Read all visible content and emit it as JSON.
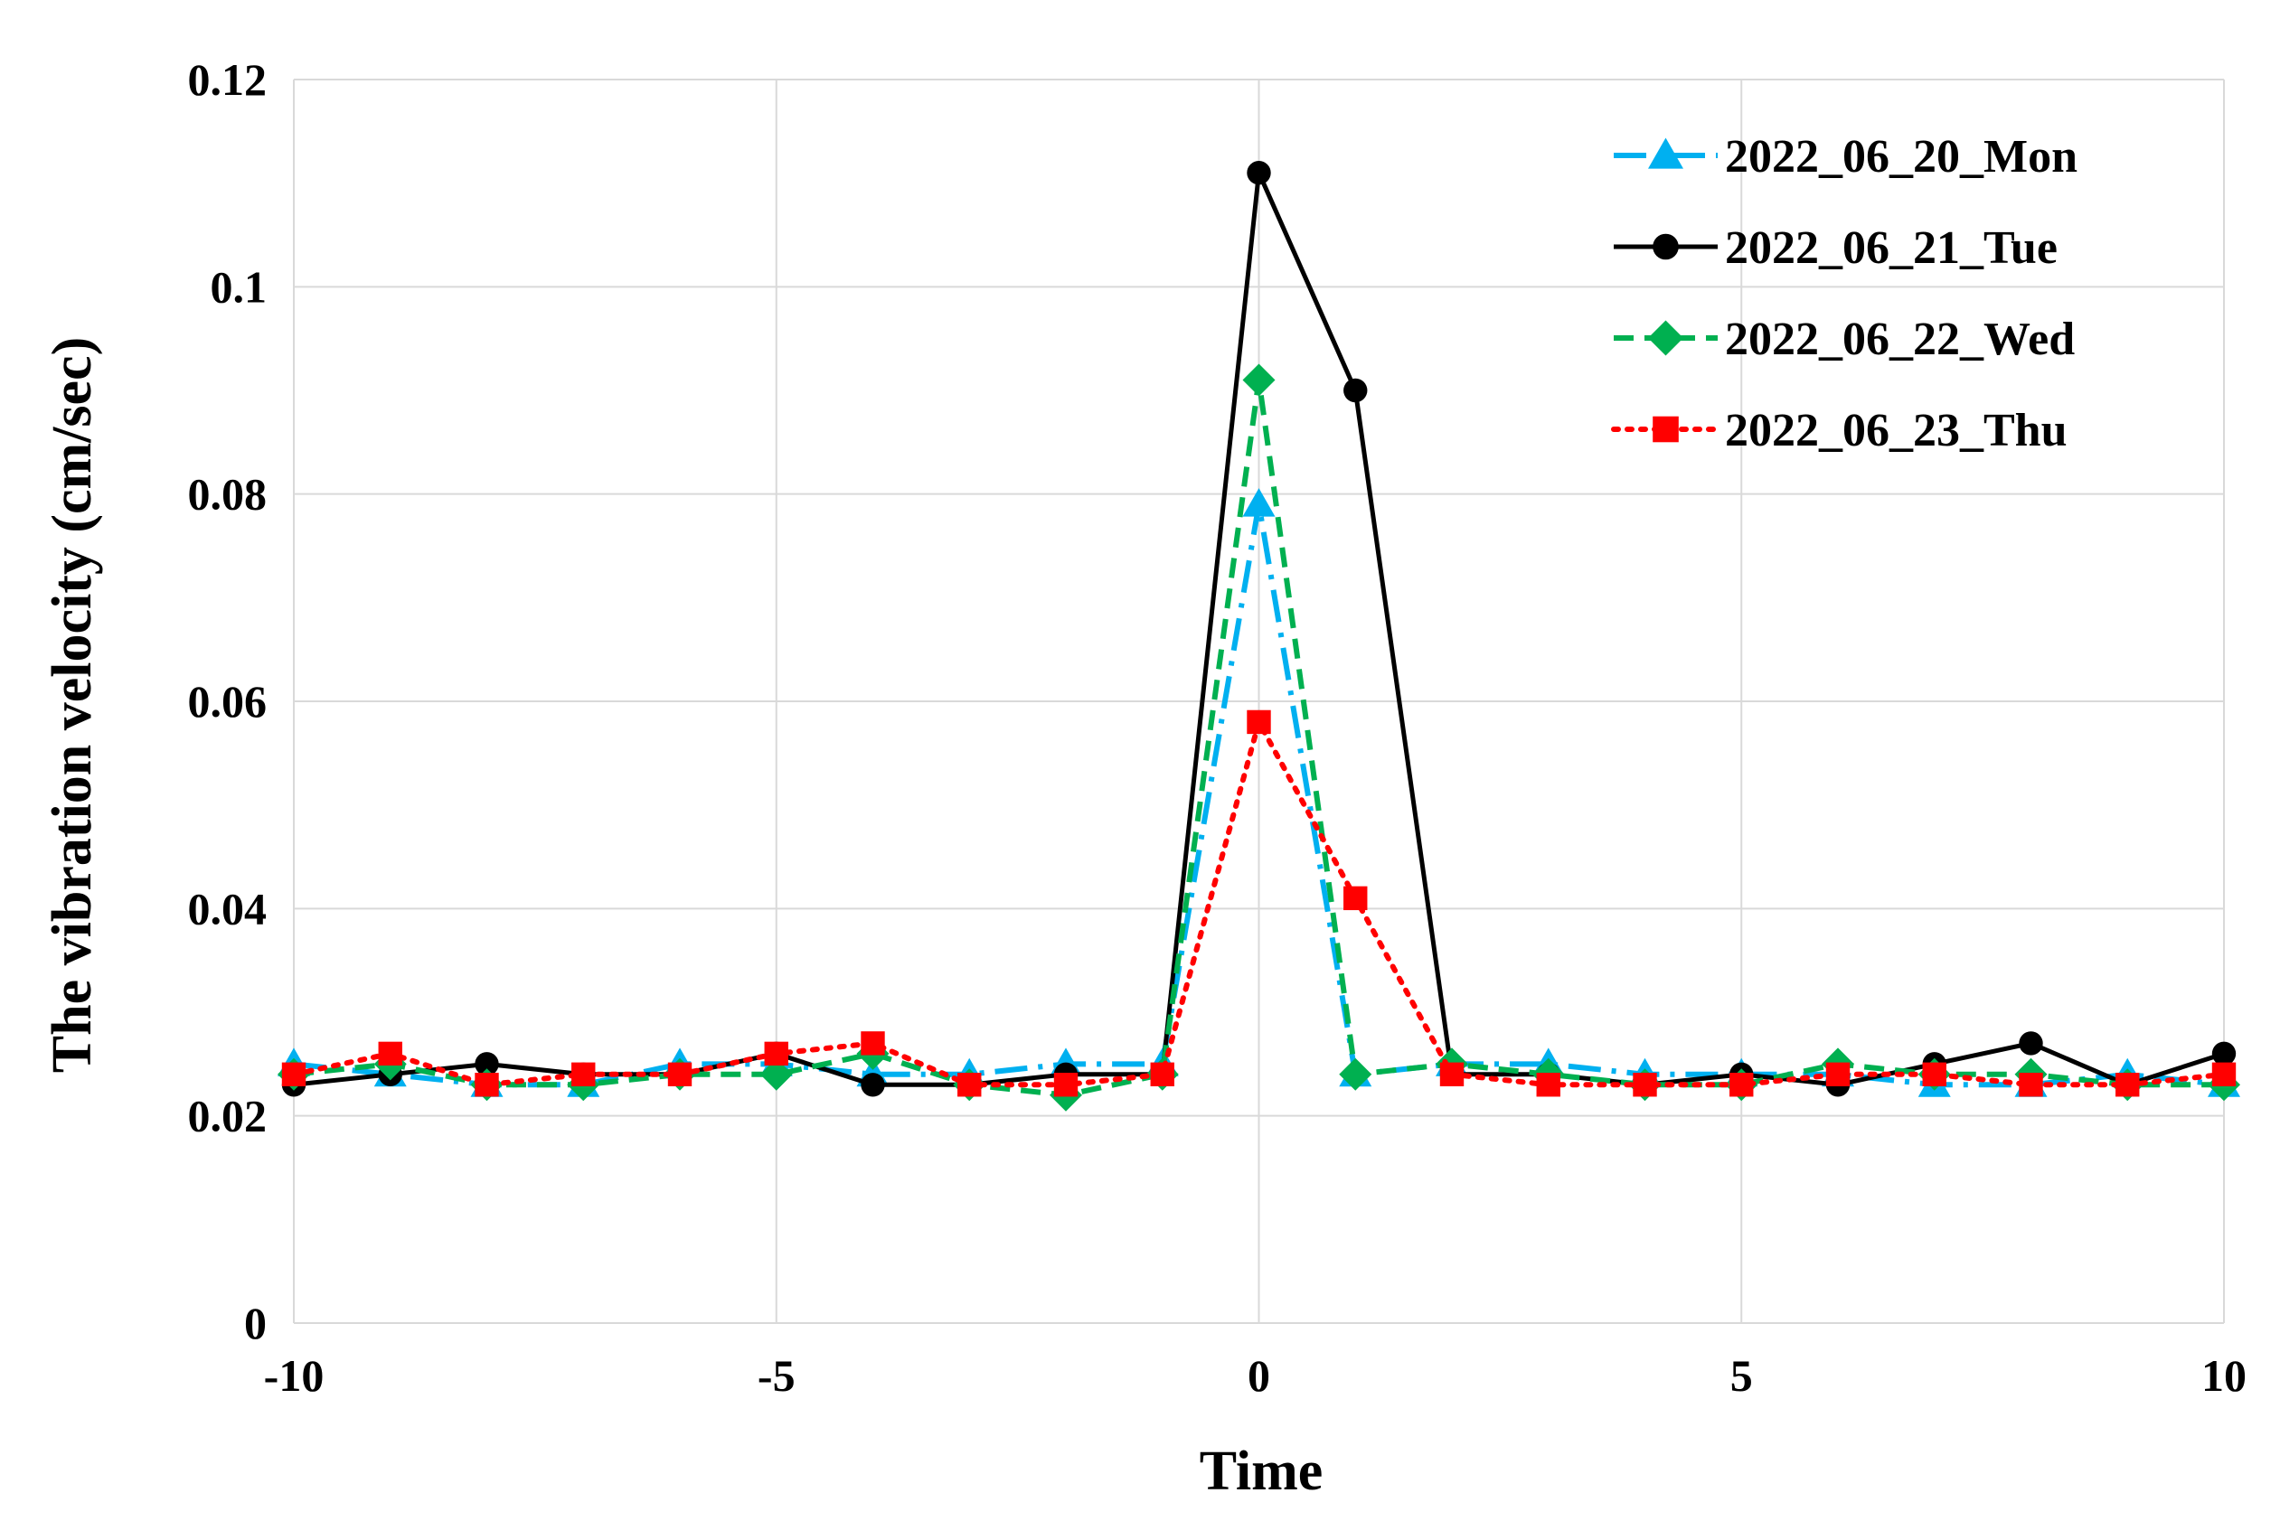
{
  "chart_data": {
    "type": "line",
    "xlabel": "Time",
    "ylabel": "The vibration velocity (cm/sec)",
    "xlim": [
      -10,
      10
    ],
    "ylim": [
      0,
      0.12
    ],
    "x_ticks": [
      -10,
      -5,
      0,
      5,
      10
    ],
    "x_tick_labels": [
      "-10",
      "-5",
      "0",
      "5",
      "10"
    ],
    "y_ticks": [
      0,
      0.02,
      0.04,
      0.06,
      0.08,
      0.1,
      0.12
    ],
    "y_tick_labels": [
      "0",
      "0.02",
      "0.04",
      "0.06",
      "0.08",
      "0.1",
      "0.12"
    ],
    "grid": true,
    "legend_position": "top-right",
    "x": [
      -10,
      -9,
      -8,
      -7,
      -6,
      -5,
      -4,
      -3,
      -2,
      -1,
      0,
      1,
      2,
      3,
      4,
      5,
      6,
      7,
      8,
      9,
      10
    ],
    "series": [
      {
        "name": "2022_06_20_Mon",
        "color": "#00b0f0",
        "line_style": "dash-dot",
        "marker": "triangle",
        "values": [
          0.025,
          0.024,
          0.023,
          0.023,
          0.025,
          0.025,
          0.024,
          0.024,
          0.025,
          0.025,
          0.079,
          0.024,
          0.025,
          0.025,
          0.024,
          0.024,
          0.024,
          0.023,
          0.023,
          0.024,
          0.023
        ]
      },
      {
        "name": "2022_06_21_Tue",
        "color": "#000000",
        "line_style": "solid",
        "marker": "circle",
        "values": [
          0.023,
          0.024,
          0.025,
          0.024,
          0.024,
          0.026,
          0.023,
          0.023,
          0.024,
          0.024,
          0.111,
          0.09,
          0.024,
          0.024,
          0.023,
          0.024,
          0.023,
          0.025,
          0.027,
          0.023,
          0.026
        ]
      },
      {
        "name": "2022_06_22_Wed",
        "color": "#00b050",
        "line_style": "dash",
        "marker": "diamond",
        "values": [
          0.024,
          0.025,
          0.023,
          0.023,
          0.024,
          0.024,
          0.026,
          0.023,
          0.022,
          0.024,
          0.091,
          0.024,
          0.025,
          0.024,
          0.023,
          0.023,
          0.025,
          0.024,
          0.024,
          0.023,
          0.023
        ]
      },
      {
        "name": "2022_06_23_Thu",
        "color": "#ff0000",
        "line_style": "dot",
        "marker": "square",
        "values": [
          0.024,
          0.026,
          0.023,
          0.024,
          0.024,
          0.026,
          0.027,
          0.023,
          0.023,
          0.024,
          0.058,
          0.041,
          0.024,
          0.023,
          0.023,
          0.023,
          0.024,
          0.024,
          0.023,
          0.023,
          0.024
        ]
      }
    ]
  }
}
